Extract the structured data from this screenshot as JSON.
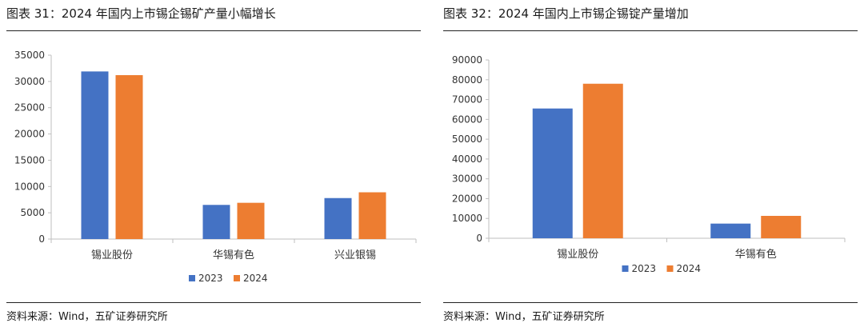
{
  "left": {
    "title": "图表 31：2024 年国内上市锡企锡矿产量小幅增长",
    "source": "资料来源：Wind，五矿证券研究所",
    "chart_data": {
      "type": "bar",
      "title": "图表 31：2024 年国内上市锡企锡矿产量小幅增长",
      "categories": [
        "锡业股份",
        "华锡有色",
        "兴业银锡"
      ],
      "series": [
        {
          "name": "2023",
          "color": "#4472C4",
          "values": [
            31900,
            6500,
            7800
          ]
        },
        {
          "name": "2024",
          "color": "#ED7D31",
          "values": [
            31200,
            6900,
            8900
          ]
        }
      ],
      "ylim": [
        0,
        35000
      ],
      "yticks": [
        0,
        5000,
        10000,
        15000,
        20000,
        25000,
        30000,
        35000
      ],
      "xlabel": "",
      "ylabel": "",
      "grid": false,
      "legend": "bottom-center"
    }
  },
  "right": {
    "title": "图表 32：2024 年国内上市锡企锡锭产量增加",
    "source": "资料来源：Wind，五矿证券研究所",
    "chart_data": {
      "type": "bar",
      "title": "图表 32：2024 年国内上市锡企锡锭产量增加",
      "categories": [
        "锡业股份",
        "华锡有色"
      ],
      "series": [
        {
          "name": "2023",
          "color": "#4472C4",
          "values": [
            65500,
            7400
          ]
        },
        {
          "name": "2024",
          "color": "#ED7D31",
          "values": [
            78000,
            11300
          ]
        }
      ],
      "ylim": [
        0,
        90000
      ],
      "yticks": [
        0,
        10000,
        20000,
        30000,
        40000,
        50000,
        60000,
        70000,
        80000,
        90000
      ],
      "xlabel": "",
      "ylabel": "",
      "grid": false,
      "legend": "bottom-center"
    }
  }
}
